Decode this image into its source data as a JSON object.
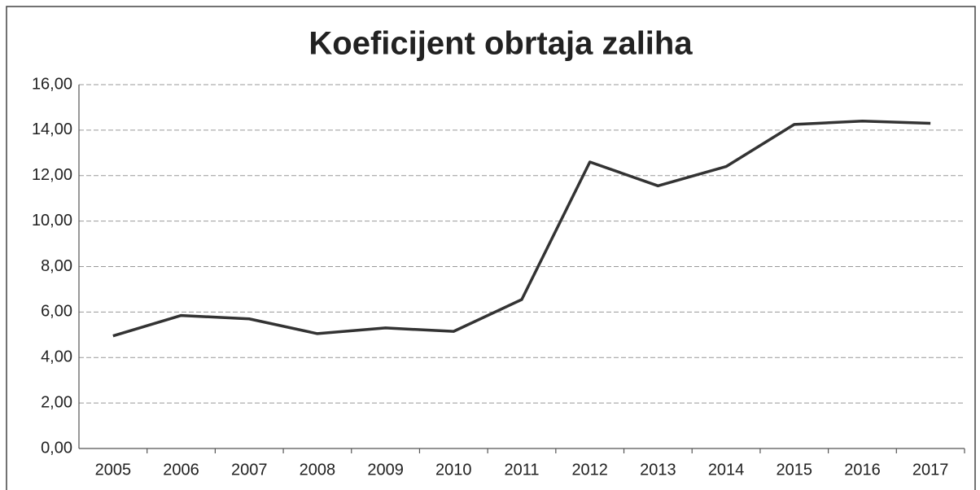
{
  "chart_data": {
    "type": "line",
    "title": "Koeficijent obrtaja zaliha",
    "categories": [
      "2005",
      "2006",
      "2007",
      "2008",
      "2009",
      "2010",
      "2011",
      "2012",
      "2013",
      "2014",
      "2015",
      "2016",
      "2017"
    ],
    "series": [
      {
        "color": "#333333",
        "values": [
          4.95,
          5.85,
          5.7,
          5.05,
          5.3,
          5.15,
          6.55,
          12.6,
          11.55,
          12.4,
          14.25,
          14.4,
          14.3
        ]
      }
    ],
    "ylim": [
      0,
      16
    ],
    "yticks": [
      {
        "value": 0,
        "label": "0,00"
      },
      {
        "value": 2,
        "label": "2,00"
      },
      {
        "value": 4,
        "label": "4,00"
      },
      {
        "value": 6,
        "label": "6,00"
      },
      {
        "value": 8,
        "label": "8,00"
      },
      {
        "value": 10,
        "label": "10,00"
      },
      {
        "value": 12,
        "label": "12,00"
      },
      {
        "value": 14,
        "label": "14,00"
      },
      {
        "value": 16,
        "label": "16,00"
      }
    ],
    "grid": true
  }
}
